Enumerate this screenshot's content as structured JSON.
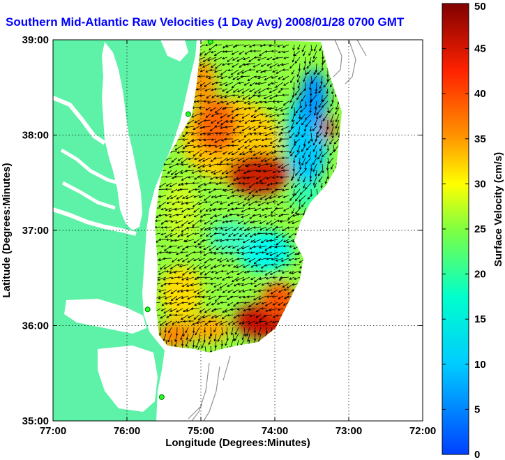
{
  "title": "Southern Mid-Atlantic Raw Velocities (1 Day Avg) 2008/01/28 0700 GMT",
  "map": {
    "xlabel": "Longitude (Degrees:Minutes)",
    "ylabel": "Latitude (Degrees:Minutes)",
    "xticks": [
      "77:00",
      "76:00",
      "75:00",
      "74:00",
      "73:00",
      "72:00"
    ],
    "yticks": [
      "39:00",
      "38:00",
      "37:00",
      "36:00",
      "35:00"
    ],
    "lon_range": [
      -77,
      -72
    ],
    "lat_range": [
      35,
      39
    ],
    "land_color": "#5ef2a8",
    "station_markers": [
      {
        "lon": -74.87,
        "lat": 38.98
      },
      {
        "lon": -75.17,
        "lat": 38.22
      },
      {
        "lon": -75.72,
        "lat": 36.17
      },
      {
        "lon": -75.53,
        "lat": 35.25
      }
    ]
  },
  "colorbar": {
    "label": "Surface Velocity (cm/s)",
    "ticks": [
      "50",
      "45",
      "40",
      "35",
      "30",
      "25",
      "20",
      "15",
      "10",
      "5",
      "0"
    ],
    "min": 0,
    "max": 50
  }
}
